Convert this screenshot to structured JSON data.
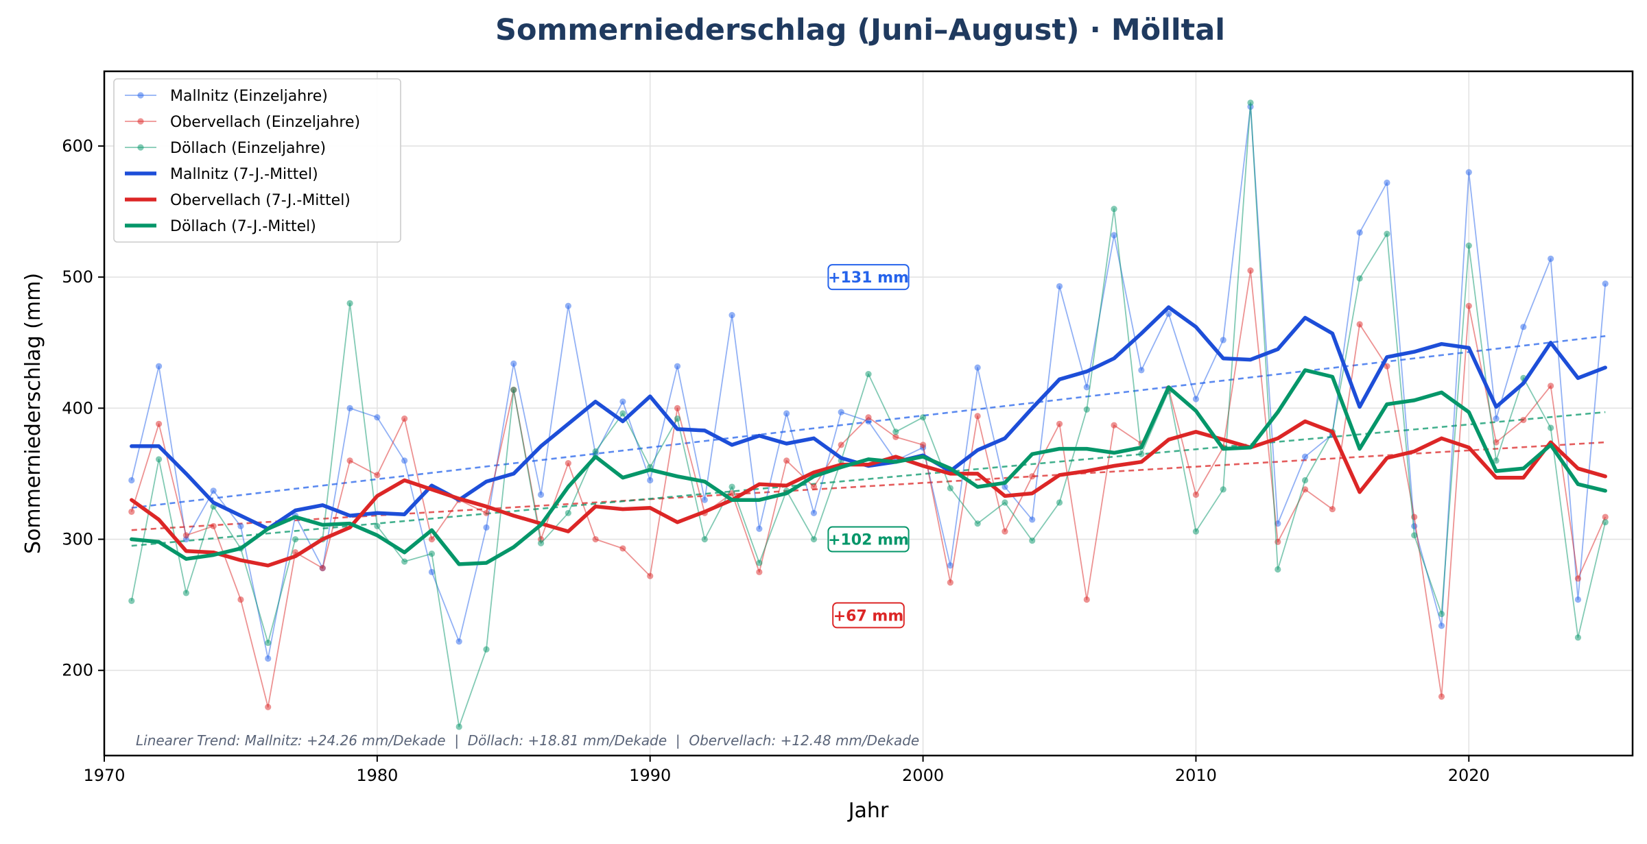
{
  "chart_data": {
    "type": "line",
    "title": "Sommerniederschlag (Juni–August) · Mölltal",
    "xlabel": "Jahr",
    "ylabel": "Sommerniederschlag (mm)",
    "xlim": [
      1970,
      2026
    ],
    "ylim": [
      135,
      657
    ],
    "xticks": [
      1970,
      1980,
      1990,
      2000,
      2010,
      2020
    ],
    "yticks": [
      200,
      300,
      400,
      500,
      600
    ],
    "grid": true,
    "legend_position": "top-left",
    "x": [
      1971,
      1972,
      1973,
      1974,
      1975,
      1976,
      1977,
      1978,
      1979,
      1980,
      1981,
      1982,
      1983,
      1984,
      1985,
      1986,
      1987,
      1988,
      1989,
      1990,
      1991,
      1992,
      1993,
      1994,
      1995,
      1996,
      1997,
      1998,
      1999,
      2000,
      2001,
      2002,
      2003,
      2004,
      2005,
      2006,
      2007,
      2008,
      2009,
      2010,
      2011,
      2012,
      2013,
      2014,
      2015,
      2016,
      2017,
      2018,
      2019,
      2020,
      2021,
      2022,
      2023,
      2024,
      2025
    ],
    "series": [
      {
        "name": "Mallnitz (Einzeljahre)",
        "kind": "annual",
        "color": "#2563eb",
        "values": [
          345,
          432,
          300,
          337,
          310,
          209,
          318,
          278,
          400,
          393,
          360,
          275,
          222,
          309,
          434,
          334,
          478,
          365,
          405,
          345,
          432,
          330,
          471,
          308,
          396,
          320,
          397,
          390,
          360,
          370,
          280,
          431,
          340,
          315,
          493,
          416,
          532,
          429,
          472,
          407,
          452,
          630,
          312,
          363,
          380,
          534,
          572,
          310,
          234,
          580,
          392,
          462,
          514,
          254,
          495
        ]
      },
      {
        "name": "Obervellach (Einzeljahre)",
        "kind": "annual",
        "color": "#dc2626",
        "values": [
          321,
          388,
          303,
          310,
          254,
          172,
          290,
          278,
          360,
          349,
          392,
          300,
          330,
          320,
          414,
          300,
          358,
          300,
          293,
          272,
          400,
          320,
          335,
          275,
          360,
          340,
          372,
          393,
          378,
          372,
          267,
          394,
          306,
          348,
          388,
          254,
          387,
          373,
          415,
          334,
          370,
          505,
          298,
          338,
          323,
          464,
          432,
          317,
          180,
          478,
          374,
          391,
          417,
          270,
          317
        ]
      },
      {
        "name": "Döllach (Einzeljahre)",
        "kind": "annual",
        "color": "#059669",
        "values": [
          253,
          361,
          259,
          325,
          293,
          221,
          300,
          300,
          480,
          310,
          283,
          289,
          157,
          216,
          414,
          297,
          320,
          367,
          396,
          355,
          392,
          300,
          340,
          282,
          337,
          300,
          360,
          426,
          382,
          393,
          339,
          312,
          328,
          299,
          328,
          399,
          552,
          365,
          413,
          306,
          338,
          633,
          277,
          345,
          382,
          499,
          533,
          303,
          243,
          524,
          360,
          423,
          385,
          225,
          313
        ]
      },
      {
        "name": "Mallnitz (7-J.-Mittel)",
        "kind": "rolling",
        "color": "#1d4ed8",
        "values": [
          371,
          371,
          350,
          328,
          318,
          308,
          322,
          326,
          318,
          320,
          319,
          341,
          330,
          344,
          350,
          371,
          388,
          405,
          390,
          409,
          384,
          383,
          372,
          379,
          373,
          377,
          362,
          356,
          359,
          364,
          352,
          368,
          377,
          400,
          422,
          428,
          438,
          457,
          477,
          462,
          438,
          437,
          445,
          469,
          457,
          401,
          439,
          443,
          449,
          446,
          401,
          419,
          450,
          423,
          431
        ]
      },
      {
        "name": "Obervellach (7-J.-Mittel)",
        "kind": "rolling",
        "color": "#dc2626",
        "values": [
          330,
          315,
          291,
          290,
          284,
          280,
          287,
          300,
          309,
          333,
          345,
          338,
          331,
          325,
          318,
          312,
          306,
          325,
          323,
          324,
          313,
          321,
          330,
          342,
          341,
          351,
          357,
          357,
          363,
          356,
          350,
          350,
          333,
          335,
          349,
          352,
          356,
          359,
          376,
          382,
          376,
          370,
          377,
          390,
          382,
          336,
          362,
          367,
          377,
          370,
          347,
          347,
          374,
          354,
          348
        ]
      },
      {
        "name": "Döllach (7-J.-Mittel)",
        "kind": "rolling",
        "color": "#059669",
        "values": [
          300,
          298,
          285,
          288,
          293,
          308,
          317,
          311,
          312,
          303,
          290,
          307,
          281,
          282,
          294,
          311,
          340,
          363,
          347,
          353,
          348,
          344,
          330,
          330,
          335,
          348,
          355,
          361,
          359,
          363,
          354,
          340,
          343,
          365,
          369,
          369,
          366,
          370,
          416,
          398,
          369,
          370,
          397,
          429,
          424,
          369,
          403,
          406,
          412,
          397,
          352,
          354,
          372,
          342,
          337
        ]
      }
    ],
    "trends": [
      {
        "name": "Mallnitz",
        "color": "#2563eb",
        "start": [
          1971,
          324
        ],
        "end": [
          2025,
          455
        ]
      },
      {
        "name": "Obervellach",
        "color": "#dc2626",
        "start": [
          1971,
          307
        ],
        "end": [
          2025,
          374
        ]
      },
      {
        "name": "Döllach",
        "color": "#059669",
        "start": [
          1971,
          295
        ],
        "end": [
          2025,
          397
        ]
      }
    ],
    "annotations": [
      {
        "text": "+131 mm",
        "x": 1998,
        "y": 500,
        "color": "#2563eb"
      },
      {
        "text": "+102 mm",
        "x": 1998,
        "y": 300,
        "color": "#059669"
      },
      {
        "text": "+67 mm",
        "x": 1998,
        "y": 242,
        "color": "#dc2626"
      }
    ],
    "note": "Linearer Trend: Mallnitz: +24.26 mm/Dekade  |  Döllach: +18.81 mm/Dekade  |  Obervellach: +12.48 mm/Dekade"
  }
}
